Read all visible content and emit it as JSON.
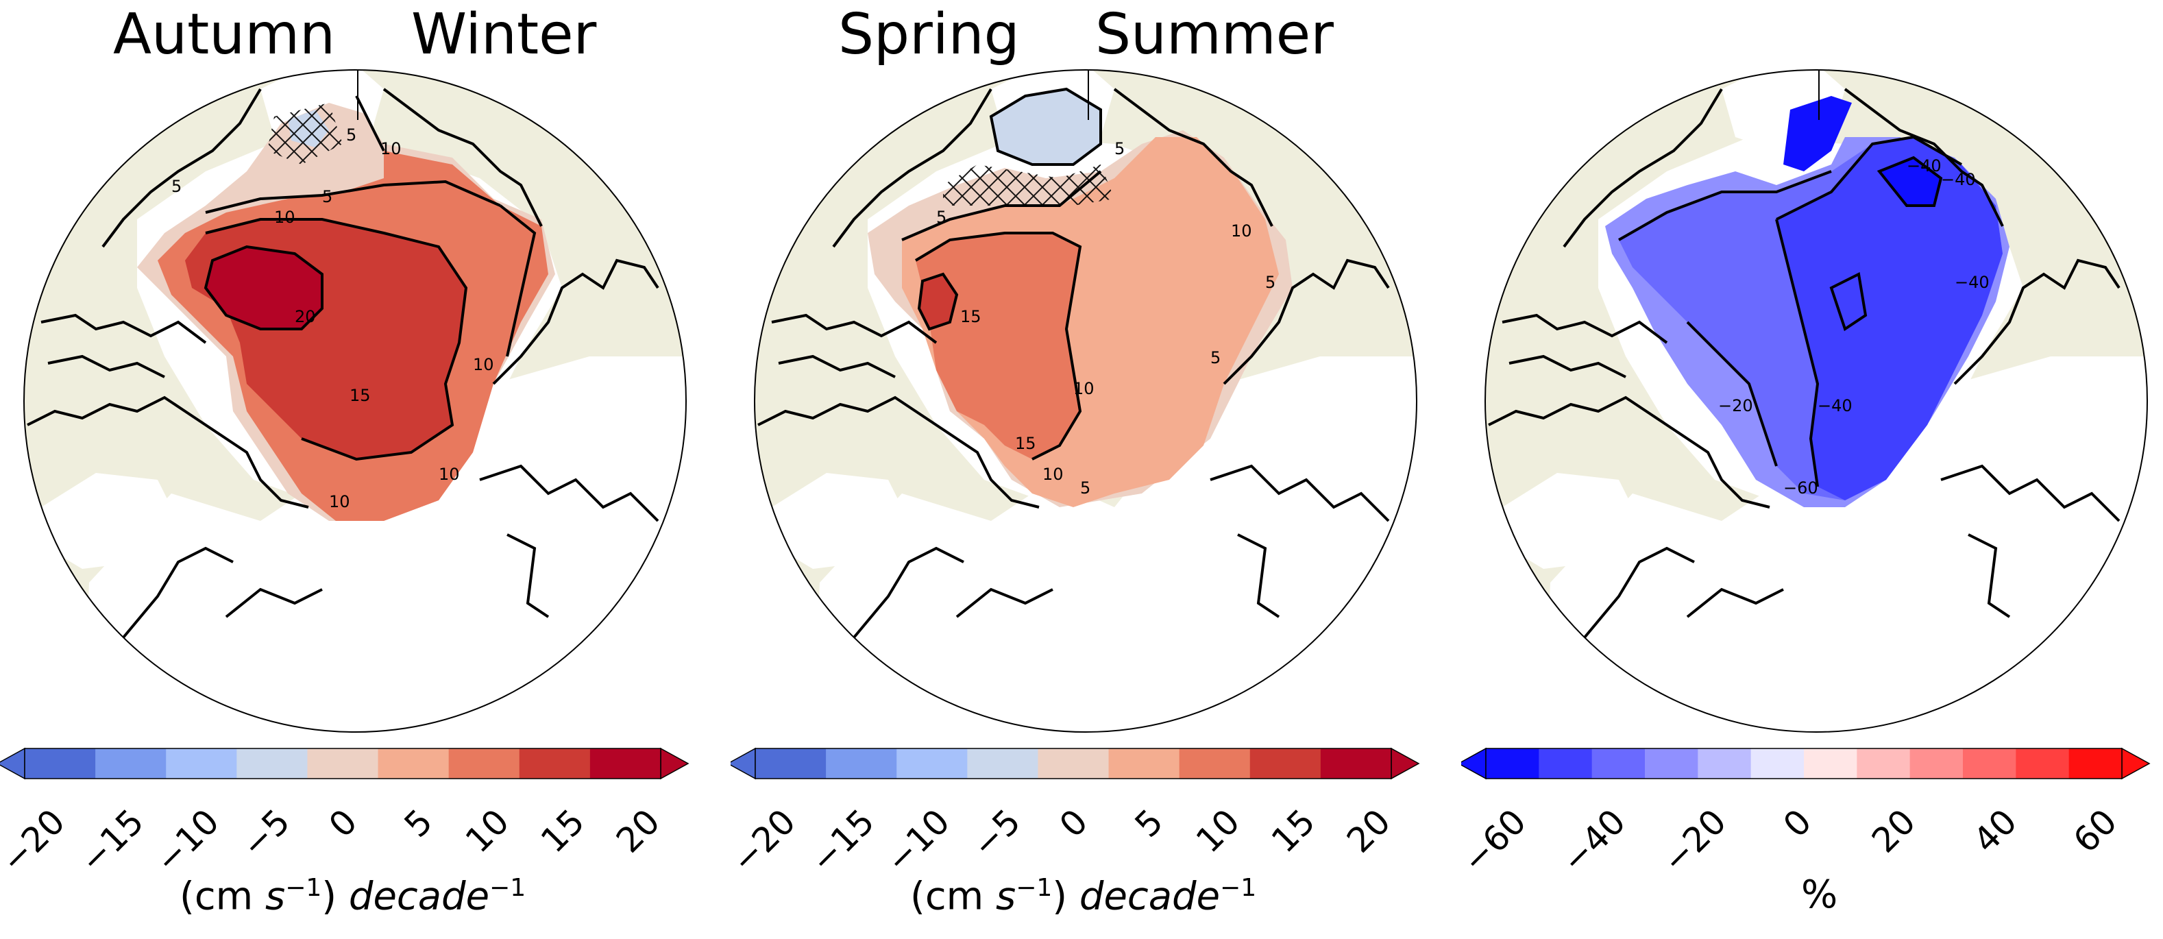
{
  "figure": {
    "panels": [
      {
        "title_left": "Autumn",
        "title_right": "Winter",
        "unit_prefix": "(cm ",
        "unit_s": "s",
        "unit_s_exp": "−1",
        "unit_mid": ") ",
        "unit_decade": "decade",
        "unit_decade_exp": "−1",
        "colorbar": {
          "ticks": [
            "−20",
            "−15",
            "−10",
            "−5",
            "0",
            "5",
            "10",
            "15",
            "20"
          ],
          "colors": [
            "#4f6dd6",
            "#7b9bef",
            "#a6c1fa",
            "#cbd8ec",
            "#edd1c4",
            "#f4ad90",
            "#e8795e",
            "#cc3b34",
            "#b40426"
          ]
        },
        "contour_labels": [
          "5",
          "10",
          "10",
          "5",
          "20",
          "15",
          "10",
          "10",
          "10",
          "5"
        ]
      },
      {
        "title_left": "Spring",
        "title_right": "Summer",
        "unit_prefix": "(cm ",
        "unit_s": "s",
        "unit_s_exp": "−1",
        "unit_mid": ") ",
        "unit_decade": "decade",
        "unit_decade_exp": "−1",
        "colorbar": {
          "ticks": [
            "−20",
            "−15",
            "−10",
            "−5",
            "0",
            "5",
            "10",
            "15",
            "20"
          ],
          "colors": [
            "#4f6dd6",
            "#7b9bef",
            "#a6c1fa",
            "#cbd8ec",
            "#edd1c4",
            "#f4ad90",
            "#e8795e",
            "#cc3b34",
            "#b40426"
          ]
        },
        "contour_labels": [
          "5",
          "5",
          "10",
          "15",
          "10",
          "15",
          "10",
          "5",
          "5",
          "5"
        ]
      },
      {
        "title_left": "",
        "title_right": "",
        "unit_plain": "%",
        "colorbar": {
          "ticks": [
            "−60",
            "−40",
            "−20",
            "0",
            "20",
            "40",
            "60"
          ],
          "colors": [
            "#1010ff",
            "#4040ff",
            "#6a6aff",
            "#9090ff",
            "#bcbcff",
            "#e6e6ff",
            "#ffe6e6",
            "#ffbcbc",
            "#ff9090",
            "#ff6a6a",
            "#ff4040",
            "#ff1010"
          ]
        },
        "contour_labels": [
          "−40",
          "−40",
          "−20",
          "−40",
          "−60",
          "−40"
        ]
      }
    ],
    "colors": {
      "land": "#efeedd",
      "ocean": "#ffffff",
      "coast": "#000000"
    }
  }
}
